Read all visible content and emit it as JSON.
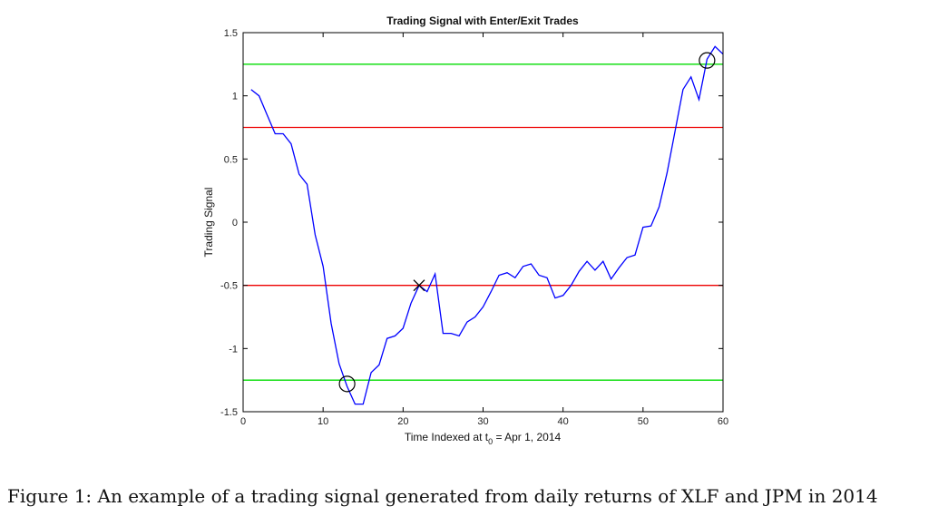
{
  "chart_data": {
    "type": "line",
    "title": "Trading Signal with Enter/Exit Trades",
    "xlabel": "Time Indexed at t",
    "xlabel_subscript": "0",
    "xlabel_suffix": " = Apr 1, 2014",
    "ylabel": "Trading Signal",
    "xlim": [
      0,
      60
    ],
    "ylim": [
      -1.5,
      1.5
    ],
    "xticks": [
      0,
      10,
      20,
      30,
      40,
      50,
      60
    ],
    "xtick_labels": [
      "0",
      "10",
      "20",
      "30",
      "40",
      "50",
      "60"
    ],
    "yticks": [
      -1.5,
      -1,
      -0.5,
      0,
      0.5,
      1,
      1.5
    ],
    "ytick_labels": [
      "-1.5",
      "-1",
      "-0.5",
      "0",
      "0.5",
      "1",
      "1.5"
    ],
    "grid": false,
    "series": [
      {
        "color": "#0000ff",
        "x": [
          1,
          2,
          3,
          4,
          5,
          6,
          7,
          8,
          9,
          10,
          11,
          12,
          13,
          14,
          15,
          16,
          17,
          18,
          19,
          20,
          21,
          22,
          23,
          24,
          25,
          26,
          27,
          28,
          29,
          30,
          31,
          32,
          33,
          34,
          35,
          36,
          37,
          38,
          39,
          40,
          41,
          42,
          43,
          44,
          45,
          46,
          47,
          48,
          49,
          50,
          51,
          52,
          53,
          54,
          55,
          56,
          57,
          58,
          59,
          60
        ],
        "y": [
          1.05,
          1.0,
          0.85,
          0.7,
          0.7,
          0.62,
          0.38,
          0.3,
          -0.1,
          -0.35,
          -0.8,
          -1.12,
          -1.3,
          -1.44,
          -1.44,
          -1.19,
          -1.13,
          -0.92,
          -0.9,
          -0.84,
          -0.64,
          -0.5,
          -0.55,
          -0.41,
          -0.88,
          -0.88,
          -0.9,
          -0.79,
          -0.75,
          -0.67,
          -0.55,
          -0.42,
          -0.4,
          -0.44,
          -0.35,
          -0.33,
          -0.42,
          -0.44,
          -0.6,
          -0.58,
          -0.5,
          -0.39,
          -0.31,
          -0.38,
          -0.31,
          -0.45,
          -0.36,
          -0.28,
          -0.26,
          -0.04,
          -0.03,
          0.12,
          0.39,
          0.72,
          1.05,
          1.15,
          0.97,
          1.29,
          1.39,
          1.33
        ]
      }
    ],
    "horizontal_lines": [
      {
        "y": 1.25,
        "color": "#00dd00"
      },
      {
        "y": 0.75,
        "color": "#ee0000"
      },
      {
        "y": -0.5,
        "color": "#ee0000"
      },
      {
        "y": -1.25,
        "color": "#00dd00"
      }
    ],
    "markers": [
      {
        "x": 13,
        "y": -1.28,
        "symbol": "circle"
      },
      {
        "x": 22,
        "y": -0.5,
        "symbol": "x"
      },
      {
        "x": 58,
        "y": 1.28,
        "symbol": "circle"
      }
    ]
  },
  "caption": "Figure 1: An example of a trading signal generated from daily returns of XLF and JPM in 2014"
}
